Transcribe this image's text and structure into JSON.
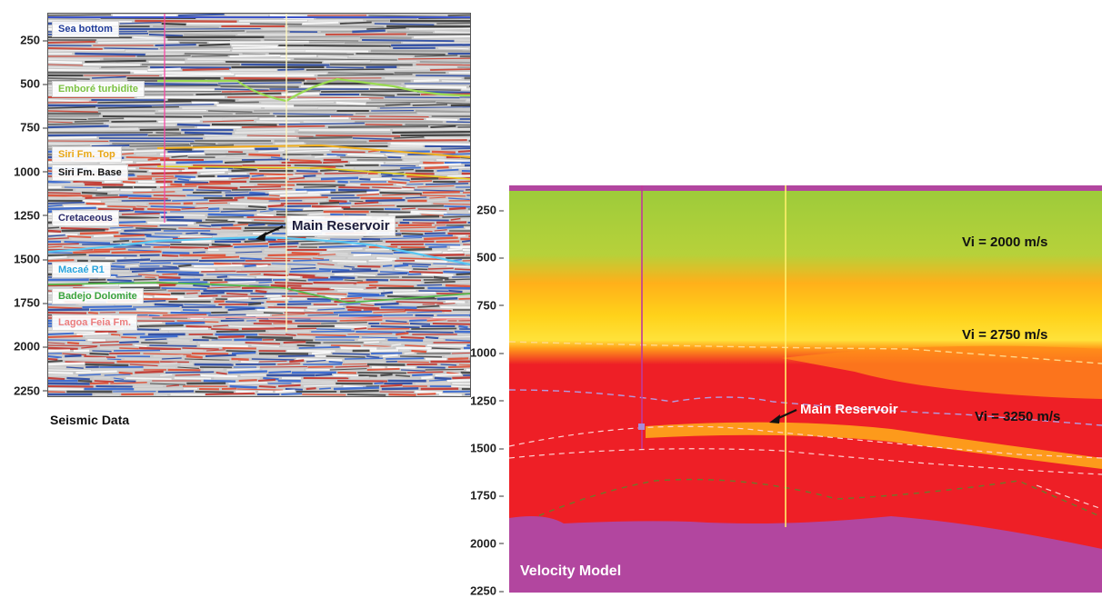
{
  "seismic": {
    "caption": "Seismic Data",
    "y_ticks": [
      "250",
      "500",
      "750",
      "1000",
      "1250",
      "1500",
      "1750",
      "2000",
      "2250"
    ],
    "horizons": [
      {
        "id": "sea-bottom",
        "label": "Sea bottom",
        "color": "#1f3b9a"
      },
      {
        "id": "embore",
        "label": "Emboré turbidite",
        "color": "#8fd14f"
      },
      {
        "id": "siri-top",
        "label": "Siri Fm. Top",
        "color": "#f2b01e"
      },
      {
        "id": "siri-base",
        "label": "Siri Fm. Base",
        "color": "#111111"
      },
      {
        "id": "cretaceous",
        "label": "Cretaceous",
        "color": "#2a2a6a"
      },
      {
        "id": "macae",
        "label": "Macaé R1",
        "color": "#3fb6ea"
      },
      {
        "id": "badejo",
        "label": "Badejo Dolomite",
        "color": "#46b34a"
      },
      {
        "id": "lagoa",
        "label": "Lagoa Feia Fm.",
        "color": "#f08a8a"
      }
    ],
    "reservoir_label": "Main Reservoir"
  },
  "velocity": {
    "caption": "Velocity Model",
    "y_ticks": [
      "250",
      "500",
      "750",
      "1000",
      "1250",
      "1500",
      "1750",
      "2000",
      "2250"
    ],
    "vi_labels": [
      "Vi = 2000 m/s",
      "Vi = 2750 m/s",
      "Vi = 3250 m/s"
    ],
    "reservoir_label": "Main Reservoir",
    "colors": {
      "low": "#9bcb3a",
      "mid": "#ffd21a",
      "high": "#ee1f26",
      "base": "#b2469f"
    }
  }
}
